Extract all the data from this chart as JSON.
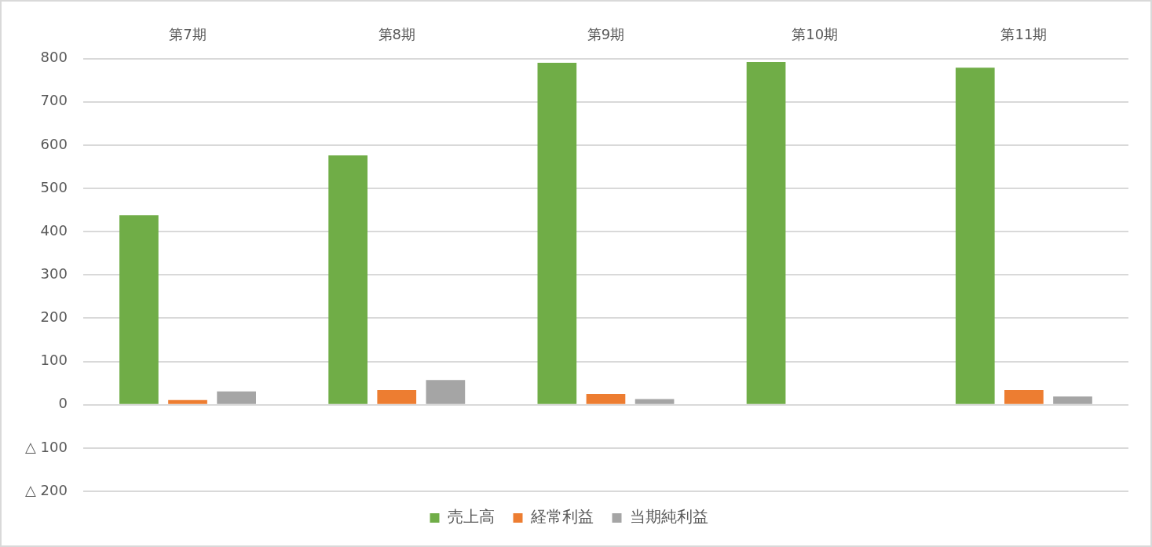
{
  "chart_data": {
    "type": "bar",
    "categories": [
      "第7期",
      "第8期",
      "第9期",
      "第10期",
      "第11期"
    ],
    "series": [
      {
        "name": "売上高",
        "color": "#70ad47",
        "values": [
          438,
          576,
          790,
          792,
          779
        ]
      },
      {
        "name": "経常利益",
        "color": "#ed7d31",
        "values": [
          11,
          34,
          25,
          null,
          34
        ]
      },
      {
        "name": "当期純利益",
        "color": "#a5a5a5",
        "values": [
          31,
          57,
          13,
          null,
          19
        ]
      }
    ],
    "ylim": [
      -200,
      800
    ],
    "yticks": [
      {
        "value": -200,
        "label": "△ 200"
      },
      {
        "value": -100,
        "label": "△ 100"
      },
      0,
      100,
      200,
      300,
      400,
      500,
      600,
      700,
      800
    ],
    "grid": "y",
    "legend": "bottom"
  }
}
